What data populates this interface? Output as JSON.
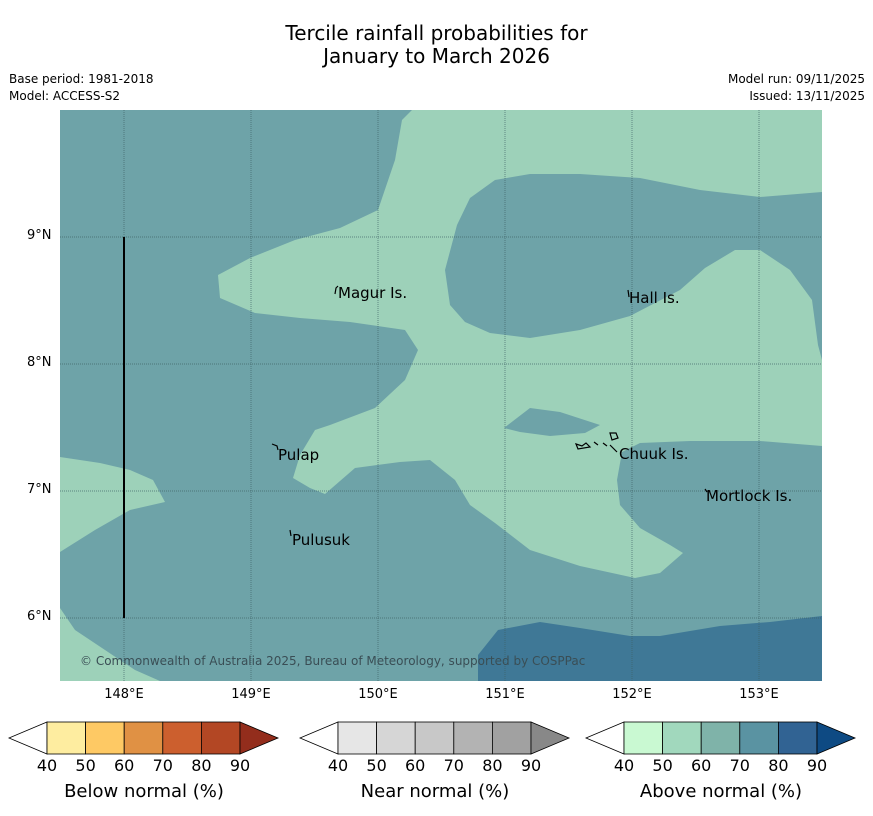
{
  "title": {
    "line1": "Tercile rainfall probabilities for",
    "line2": "January to March 2026"
  },
  "meta": {
    "base_period": "Base period: 1981-2018",
    "model": "Model: ACCESS-S2",
    "model_run": "Model run: 09/11/2025",
    "issued": "Issued: 13/11/2025"
  },
  "map": {
    "lat_labels": [
      "9°N",
      "8°N",
      "7°N",
      "6°N"
    ],
    "lon_labels": [
      "148°E",
      "149°E",
      "150°E",
      "151°E",
      "152°E",
      "153°E"
    ],
    "places": [
      "Magur Is.",
      "Hall Is.",
      "Pulap",
      "Chuuk Is.",
      "Mortlock Is.",
      "Pulusuk"
    ],
    "copyright": "© Commonwealth of Australia 2025, Bureau of Meteorology, supported by COSPPac",
    "colors": {
      "above_40_50": "#9dd1b9",
      "above_60_70": "#6ea3a8",
      "above_70_80": "#3f7896"
    }
  },
  "colorbars": {
    "ticks": [
      "40",
      "50",
      "60",
      "70",
      "80",
      "90"
    ],
    "below": {
      "title": "Below normal (%)",
      "colors": [
        "#ffffff",
        "#feeda0",
        "#fec964",
        "#e09144",
        "#cc5f2e",
        "#b34724",
        "#932d1c"
      ]
    },
    "near": {
      "title": "Near normal (%)",
      "colors": [
        "#ffffff",
        "#e6e6e6",
        "#d6d6d6",
        "#c8c8c8",
        "#b3b3b3",
        "#a1a1a1",
        "#888888"
      ]
    },
    "above": {
      "title": "Above normal (%)",
      "colors": [
        "#ffffff",
        "#c9f9d2",
        "#a1d8bd",
        "#7fb3a9",
        "#5a93a2",
        "#316393",
        "#0e4a83"
      ]
    }
  }
}
